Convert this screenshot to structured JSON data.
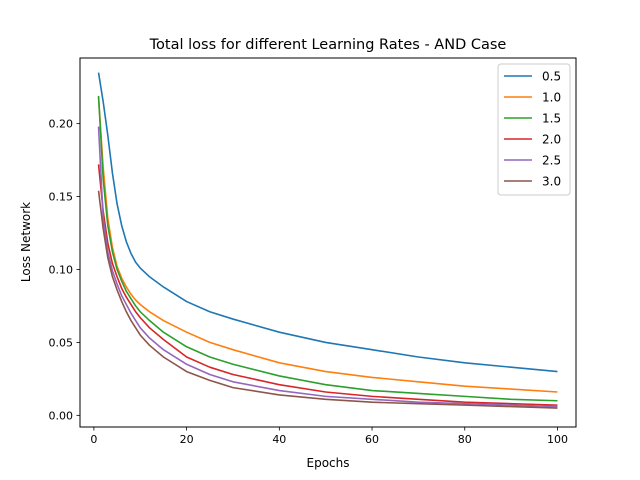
{
  "chart_data": {
    "type": "line",
    "title": "Total loss for different Learning Rates - AND Case",
    "xlabel": "Epochs",
    "ylabel": "Loss Network",
    "xlim": [
      -3,
      104
    ],
    "ylim": [
      -0.008,
      0.245
    ],
    "xticks": [
      0,
      20,
      40,
      60,
      80,
      100
    ],
    "yticks": [
      0.0,
      0.05,
      0.1,
      0.15,
      0.2
    ],
    "ytick_labels": [
      "0.00",
      "0.05",
      "0.10",
      "0.15",
      "0.20"
    ],
    "grid": false,
    "legend_position": "top-right",
    "x": [
      1,
      2,
      3,
      4,
      5,
      6,
      7,
      8,
      9,
      10,
      12,
      15,
      20,
      25,
      30,
      40,
      50,
      60,
      70,
      80,
      90,
      100
    ],
    "series": [
      {
        "name": "0.5",
        "color": "#1f77b4",
        "values": [
          0.235,
          0.215,
          0.192,
          0.166,
          0.145,
          0.13,
          0.119,
          0.111,
          0.105,
          0.101,
          0.095,
          0.088,
          0.078,
          0.071,
          0.066,
          0.057,
          0.05,
          0.045,
          0.04,
          0.036,
          0.033,
          0.03
        ]
      },
      {
        "name": "1.0",
        "color": "#ff7f0e",
        "values": [
          0.218,
          0.17,
          0.135,
          0.115,
          0.102,
          0.094,
          0.088,
          0.083,
          0.079,
          0.076,
          0.071,
          0.065,
          0.057,
          0.05,
          0.045,
          0.036,
          0.03,
          0.026,
          0.023,
          0.02,
          0.018,
          0.016
        ]
      },
      {
        "name": "1.5",
        "color": "#2ca02c",
        "values": [
          0.219,
          0.162,
          0.13,
          0.112,
          0.1,
          0.092,
          0.085,
          0.08,
          0.075,
          0.071,
          0.065,
          0.057,
          0.047,
          0.04,
          0.035,
          0.027,
          0.021,
          0.017,
          0.015,
          0.013,
          0.011,
          0.01
        ]
      },
      {
        "name": "2.0",
        "color": "#d62728",
        "values": [
          0.172,
          0.14,
          0.118,
          0.104,
          0.095,
          0.087,
          0.081,
          0.076,
          0.071,
          0.067,
          0.06,
          0.052,
          0.04,
          0.033,
          0.028,
          0.021,
          0.016,
          0.013,
          0.011,
          0.009,
          0.008,
          0.007
        ]
      },
      {
        "name": "2.5",
        "color": "#9467bd",
        "values": [
          0.198,
          0.135,
          0.112,
          0.099,
          0.09,
          0.082,
          0.076,
          0.07,
          0.065,
          0.06,
          0.053,
          0.045,
          0.035,
          0.028,
          0.023,
          0.017,
          0.013,
          0.011,
          0.009,
          0.008,
          0.007,
          0.006
        ]
      },
      {
        "name": "3.0",
        "color": "#8c564b",
        "values": [
          0.154,
          0.128,
          0.108,
          0.095,
          0.086,
          0.078,
          0.071,
          0.065,
          0.06,
          0.055,
          0.048,
          0.04,
          0.03,
          0.024,
          0.019,
          0.014,
          0.011,
          0.009,
          0.008,
          0.007,
          0.006,
          0.005
        ]
      }
    ]
  }
}
